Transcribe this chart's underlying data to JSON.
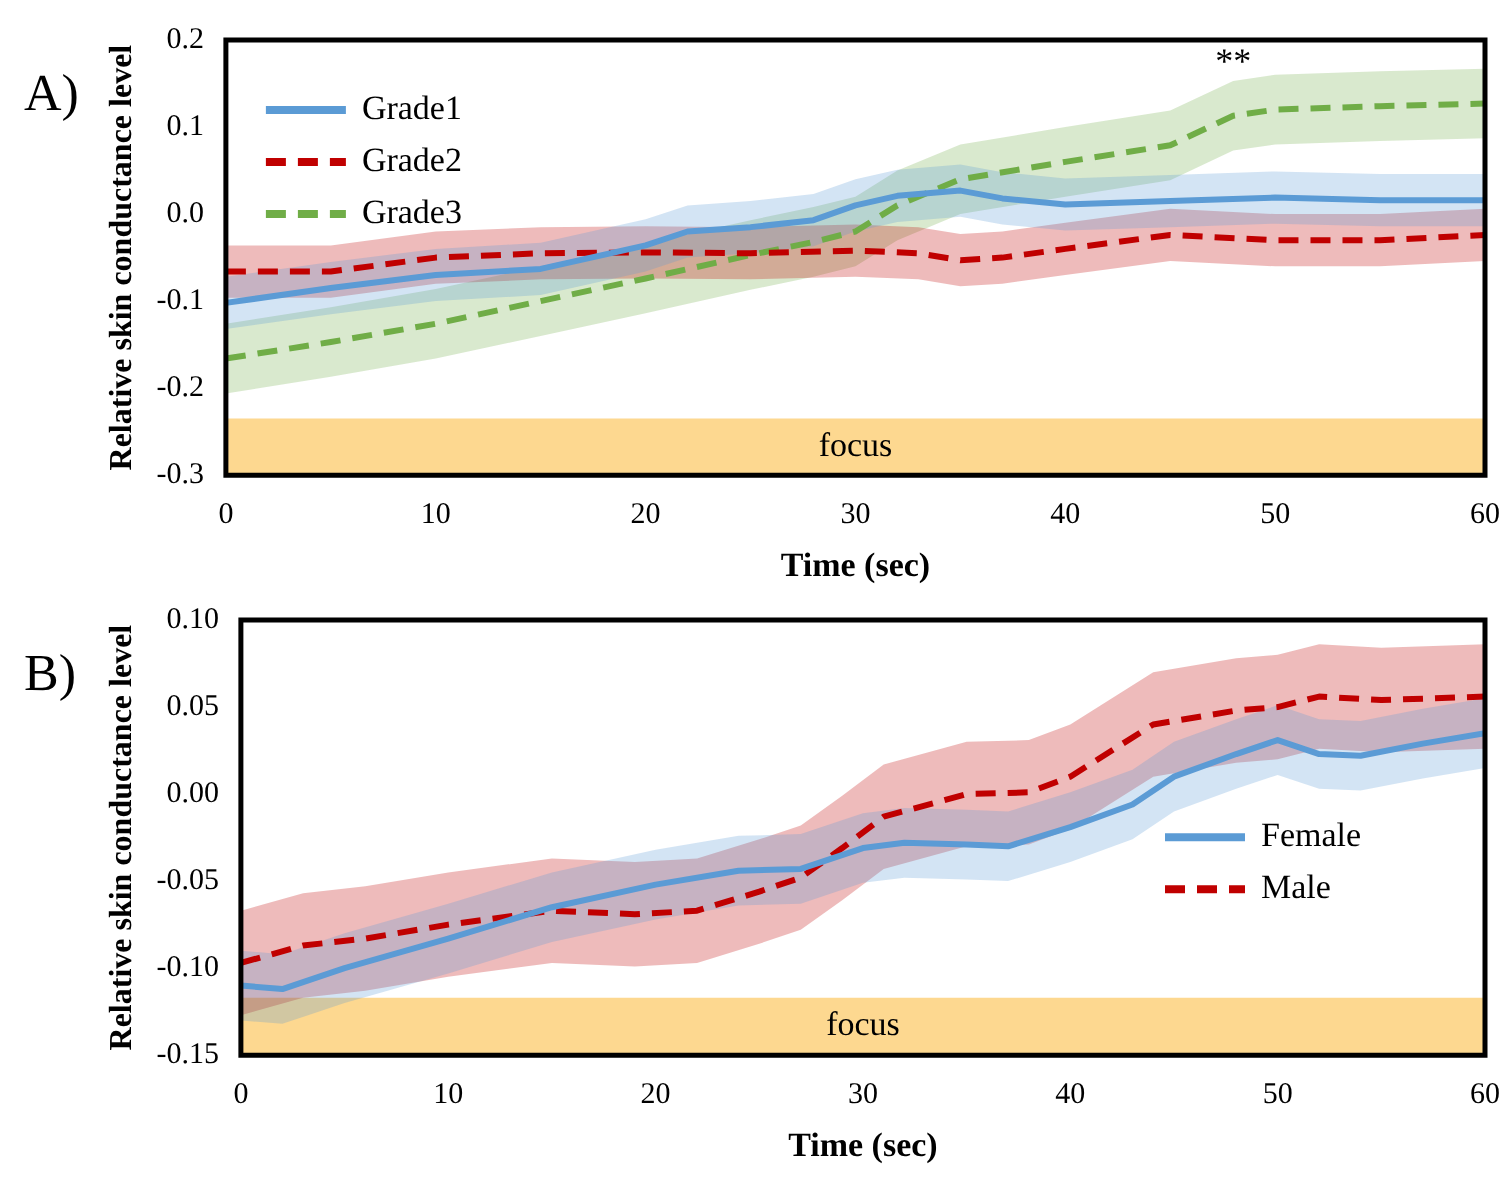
{
  "chart_data": [
    {
      "type": "line",
      "annotations": [
        "A)",
        "**"
      ],
      "xlabel": "Time (sec)",
      "ylabel": "Relative skin conductance level",
      "xlim": [
        0,
        60
      ],
      "xticks": [
        0,
        10,
        20,
        30,
        40,
        50,
        60
      ],
      "ylim": [
        -0.3,
        0.2
      ],
      "yticks": [
        -0.3,
        -0.2,
        -0.1,
        {
          "value": 0,
          "label": "0.0"
        },
        0.1,
        0.2
      ],
      "grid": false,
      "legend": "top left",
      "marker": "none",
      "bands": [
        {
          "axis": "y",
          "from": -0.3,
          "to": -0.235,
          "label": "focus",
          "color": "#fdd890"
        }
      ],
      "series": [
        {
          "name": "Grade1",
          "color": "#5b9bd5",
          "line_style": "solid",
          "x": [
            0,
            5,
            10,
            15,
            20,
            22,
            25,
            28,
            30,
            32,
            35,
            37,
            40,
            45,
            50,
            55,
            60
          ],
          "values": [
            -0.102,
            -0.085,
            -0.07,
            -0.063,
            -0.036,
            -0.02,
            -0.015,
            -0.007,
            0.01,
            0.021,
            0.027,
            0.018,
            0.011,
            0.015,
            0.019,
            0.016,
            0.016
          ],
          "lower": [
            -0.132,
            -0.115,
            -0.1,
            -0.093,
            -0.066,
            -0.05,
            -0.045,
            -0.037,
            -0.02,
            -0.009,
            -0.003,
            -0.012,
            -0.019,
            -0.015,
            -0.011,
            -0.014,
            -0.014
          ],
          "upper": [
            -0.072,
            -0.055,
            -0.04,
            -0.033,
            -0.006,
            0.01,
            0.015,
            0.023,
            0.04,
            0.051,
            0.057,
            0.048,
            0.041,
            0.045,
            0.049,
            0.046,
            0.046
          ]
        },
        {
          "name": "Grade2",
          "color": "#c00000",
          "line_style": "dashed",
          "x": [
            0,
            5,
            10,
            15,
            20,
            25,
            30,
            33,
            35,
            37,
            40,
            45,
            50,
            55,
            60
          ],
          "values": [
            -0.066,
            -0.066,
            -0.05,
            -0.045,
            -0.044,
            -0.045,
            -0.042,
            -0.045,
            -0.053,
            -0.05,
            -0.04,
            -0.024,
            -0.03,
            -0.03,
            -0.024
          ],
          "lower": [
            -0.096,
            -0.096,
            -0.08,
            -0.075,
            -0.074,
            -0.075,
            -0.072,
            -0.075,
            -0.083,
            -0.08,
            -0.07,
            -0.054,
            -0.06,
            -0.06,
            -0.054
          ],
          "upper": [
            -0.036,
            -0.036,
            -0.02,
            -0.015,
            -0.014,
            -0.015,
            -0.012,
            -0.015,
            -0.023,
            -0.02,
            -0.01,
            0.006,
            0.0,
            0.0,
            0.006
          ]
        },
        {
          "name": "Grade3",
          "color": "#70ad47",
          "line_style": "dashed",
          "x": [
            0,
            5,
            10,
            15,
            20,
            25,
            28,
            30,
            32,
            35,
            40,
            45,
            48,
            50,
            55,
            60
          ],
          "values": [
            -0.166,
            -0.147,
            -0.126,
            -0.1,
            -0.074,
            -0.047,
            -0.032,
            -0.02,
            0.01,
            0.04,
            0.06,
            0.079,
            0.113,
            0.12,
            0.124,
            0.127
          ],
          "lower": [
            -0.206,
            -0.187,
            -0.166,
            -0.14,
            -0.114,
            -0.087,
            -0.072,
            -0.06,
            -0.03,
            0.0,
            0.02,
            0.039,
            0.073,
            0.08,
            0.084,
            0.087
          ],
          "upper": [
            -0.126,
            -0.107,
            -0.086,
            -0.06,
            -0.034,
            -0.007,
            0.008,
            0.02,
            0.05,
            0.08,
            0.1,
            0.119,
            0.153,
            0.16,
            0.164,
            0.167
          ]
        }
      ]
    },
    {
      "type": "line",
      "annotations": [
        "B)"
      ],
      "xlabel": "Time (sec)",
      "ylabel": "Relative skin conductance level",
      "xlim": [
        0,
        60
      ],
      "xticks": [
        0,
        10,
        20,
        30,
        40,
        50,
        60
      ],
      "ylim": [
        -0.15,
        0.1
      ],
      "yticks": [
        {
          "value": -0.15,
          "label": "-0.15"
        },
        {
          "value": -0.1,
          "label": "-0.10"
        },
        {
          "value": -0.05,
          "label": "-0.05"
        },
        {
          "value": 0,
          "label": "0.00"
        },
        {
          "value": 0.05,
          "label": "0.05"
        },
        {
          "value": 0.1,
          "label": "0.10"
        }
      ],
      "grid": false,
      "legend": "bottom right",
      "marker": "none",
      "bands": [
        {
          "axis": "y",
          "from": -0.15,
          "to": -0.117,
          "label": "focus",
          "color": "#fdd890"
        }
      ],
      "series": [
        {
          "name": "Female",
          "color": "#5b9bd5",
          "line_style": "solid",
          "x": [
            0,
            2,
            5,
            10,
            15,
            20,
            24,
            27,
            30,
            32,
            35,
            37,
            40,
            43,
            45,
            48,
            50,
            52,
            54,
            57,
            60
          ],
          "values": [
            -0.11,
            -0.112,
            -0.1,
            -0.083,
            -0.065,
            -0.052,
            -0.044,
            -0.043,
            -0.031,
            -0.028,
            -0.029,
            -0.03,
            -0.019,
            -0.006,
            0.01,
            0.023,
            0.031,
            0.023,
            0.022,
            0.029,
            0.035
          ],
          "lower": [
            -0.13,
            -0.132,
            -0.12,
            -0.103,
            -0.085,
            -0.072,
            -0.064,
            -0.063,
            -0.051,
            -0.048,
            -0.049,
            -0.05,
            -0.039,
            -0.026,
            -0.01,
            0.003,
            0.011,
            0.003,
            0.002,
            0.009,
            0.015
          ],
          "upper": [
            -0.09,
            -0.092,
            -0.08,
            -0.063,
            -0.045,
            -0.032,
            -0.024,
            -0.023,
            -0.011,
            -0.008,
            -0.009,
            -0.01,
            0.001,
            0.014,
            0.03,
            0.043,
            0.051,
            0.043,
            0.042,
            0.049,
            0.055
          ]
        },
        {
          "name": "Male",
          "color": "#c00000",
          "line_style": "dashed",
          "x": [
            0,
            3,
            6,
            10,
            15,
            19,
            22,
            25,
            27,
            29,
            31,
            35,
            38,
            40,
            44,
            48,
            50,
            52,
            55,
            60
          ],
          "values": [
            -0.097,
            -0.087,
            -0.083,
            -0.075,
            -0.067,
            -0.069,
            -0.067,
            -0.056,
            -0.048,
            -0.031,
            -0.013,
            0.0,
            0.001,
            0.01,
            0.04,
            0.048,
            0.05,
            0.056,
            0.054,
            0.056
          ],
          "lower": [
            -0.127,
            -0.117,
            -0.113,
            -0.105,
            -0.097,
            -0.099,
            -0.097,
            -0.086,
            -0.078,
            -0.061,
            -0.043,
            -0.03,
            -0.029,
            -0.02,
            0.01,
            0.018,
            0.02,
            0.026,
            0.024,
            0.026
          ],
          "upper": [
            -0.067,
            -0.057,
            -0.053,
            -0.045,
            -0.037,
            -0.039,
            -0.037,
            -0.026,
            -0.018,
            -0.001,
            0.017,
            0.03,
            0.031,
            0.04,
            0.07,
            0.078,
            0.08,
            0.086,
            0.084,
            0.086
          ]
        }
      ]
    }
  ]
}
